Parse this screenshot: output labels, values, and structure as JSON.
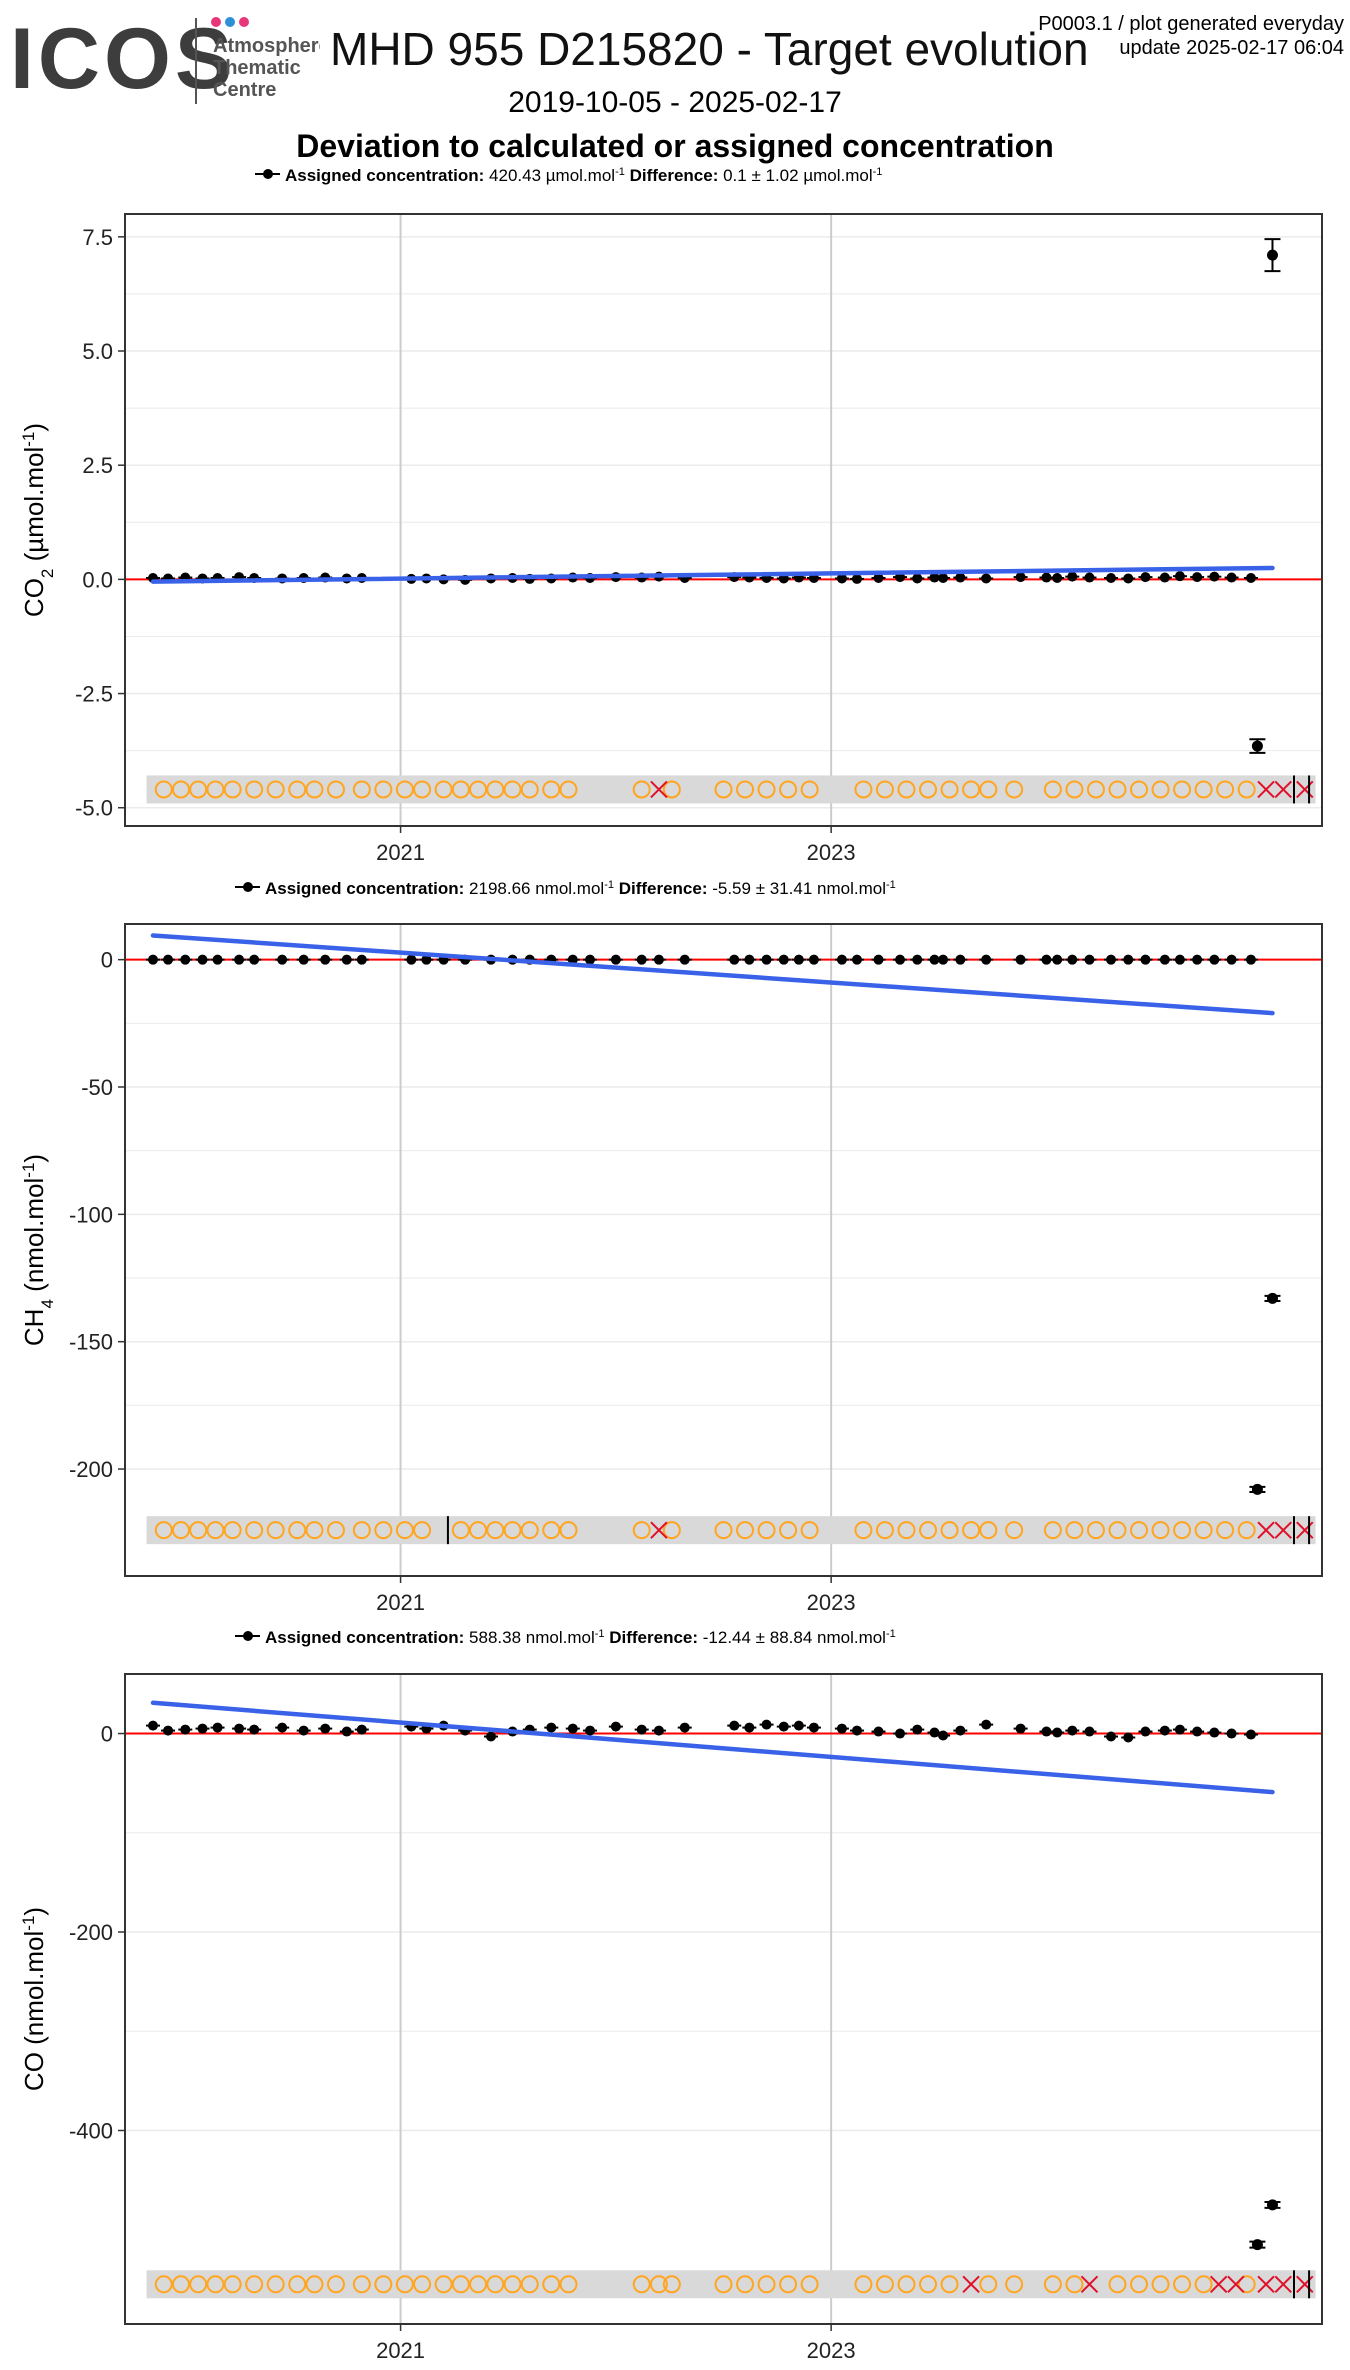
{
  "header": {
    "logo_text": "ICOS",
    "logo_sub": [
      "Atmosphere",
      "Thematic",
      "Centre"
    ],
    "title": "MHD 955 D215820 - Target evolution",
    "meta_line1": "P0003.1 / plot generated everyday",
    "meta_line2": "update  2025-02-17 06:04",
    "date_range": "2019-10-05 - 2025-02-17",
    "subtitle": "Deviation to calculated or assigned concentration"
  },
  "colors": {
    "points": "#000000",
    "zero_line": "#ff0000",
    "trend": "#3a62e8",
    "valid_marker": "#ffa520",
    "flag_marker": "#e0102a",
    "marker_band": "#d9d9d9",
    "grid": "#ebebeb",
    "year_line": "#cccccc"
  },
  "x_axis": {
    "ticks": [
      "2021",
      "2023"
    ]
  },
  "chart_data": [
    {
      "type": "scatter",
      "species": "co2",
      "ylabel_main": "CO",
      "ylabel_sub": "2",
      "ylabel_unit": " (µmol.mol",
      "ylabel_sup": "-1",
      "ylabel_close": ")",
      "legend_prefix": "Assigned concentration:",
      "legend_value": "420.43 µmol.mol",
      "legend_sup1": "-1",
      "legend_diff_label": "Difference:",
      "legend_diff_value": "0.1 ± 1.02 µmol.mol",
      "legend_sup2": "-1",
      "ylim": [
        -5.4,
        8.0
      ],
      "yticks": [
        7.5,
        5.0,
        2.5,
        0.0,
        -2.5,
        -5.0
      ],
      "ytick_labels": [
        "7.5",
        "5.0",
        "2.5",
        "0.0",
        "-2.5",
        "-5.0"
      ],
      "marker_y": -4.6,
      "x": [
        2019.85,
        2019.92,
        2020.0,
        2020.08,
        2020.15,
        2020.25,
        2020.32,
        2020.45,
        2020.55,
        2020.65,
        2020.75,
        2020.82,
        2021.05,
        2021.12,
        2021.2,
        2021.3,
        2021.42,
        2021.52,
        2021.6,
        2021.7,
        2021.8,
        2021.88,
        2022.0,
        2022.12,
        2022.2,
        2022.32,
        2022.55,
        2022.62,
        2022.7,
        2022.78,
        2022.85,
        2022.92,
        2023.05,
        2023.12,
        2023.22,
        2023.32,
        2023.4,
        2023.48,
        2023.52,
        2023.6,
        2023.72,
        2023.88,
        2024.0,
        2024.05,
        2024.12,
        2024.2,
        2024.3,
        2024.38,
        2024.46,
        2024.55,
        2024.62,
        2024.7,
        2024.78,
        2024.86,
        2024.95
      ],
      "y": [
        0.03,
        0.02,
        0.04,
        0.02,
        0.03,
        0.05,
        0.03,
        0.02,
        0.03,
        0.04,
        0.02,
        0.03,
        0.01,
        0.02,
        0.0,
        -0.01,
        0.02,
        0.03,
        0.01,
        0.02,
        0.04,
        0.03,
        0.05,
        0.04,
        0.06,
        0.03,
        0.05,
        0.04,
        0.03,
        0.02,
        0.04,
        0.03,
        0.02,
        0.01,
        0.03,
        0.05,
        0.02,
        0.04,
        0.03,
        0.04,
        0.02,
        0.05,
        0.04,
        0.03,
        0.06,
        0.04,
        0.03,
        0.02,
        0.05,
        0.04,
        0.07,
        0.05,
        0.06,
        0.04,
        0.03
      ],
      "outliers": [
        {
          "x": 2025.05,
          "y": 7.1,
          "err": 0.35
        },
        {
          "x": 2024.98,
          "y": -3.65,
          "err": 0.15
        }
      ],
      "trend": {
        "x": [
          2019.85,
          2025.05
        ],
        "y": [
          -0.05,
          0.25
        ]
      },
      "markers_valid": [
        2019.9,
        2019.98,
        2020.06,
        2020.14,
        2020.22,
        2020.32,
        2020.42,
        2020.52,
        2020.6,
        2020.7,
        2020.82,
        2020.92,
        2021.02,
        2021.1,
        2021.2,
        2021.28,
        2021.36,
        2021.44,
        2021.52,
        2021.6,
        2021.7,
        2021.78,
        2022.12,
        2022.26,
        2022.5,
        2022.6,
        2022.7,
        2022.8,
        2022.9,
        2023.15,
        2023.25,
        2023.35,
        2023.45,
        2023.55,
        2023.65,
        2023.73,
        2023.85,
        2024.03,
        2024.13,
        2024.23,
        2024.33,
        2024.43,
        2024.53,
        2024.63,
        2024.73,
        2024.83,
        2024.93
      ],
      "markers_flag": [
        2022.2,
        2025.02,
        2025.1,
        2025.2
      ],
      "markers_bar": [
        2025.15,
        2025.22
      ]
    },
    {
      "type": "scatter",
      "species": "ch4",
      "ylabel_main": "CH",
      "ylabel_sub": "4",
      "ylabel_unit": " (nmol.mol",
      "ylabel_sup": "-1",
      "ylabel_close": ")",
      "legend_prefix": "Assigned concentration:",
      "legend_value": "2198.66 nmol.mol",
      "legend_sup1": "-1",
      "legend_diff_label": "Difference:",
      "legend_diff_value": "-5.59 ± 31.41 nmol.mol",
      "legend_sup2": "-1",
      "ylim": [
        -242,
        14
      ],
      "yticks": [
        0,
        -50,
        -100,
        -150,
        -200
      ],
      "ytick_labels": [
        "0",
        "-50",
        "-100",
        "-150",
        "-200"
      ],
      "marker_y": -224,
      "x": [
        2019.85,
        2019.92,
        2020.0,
        2020.08,
        2020.15,
        2020.25,
        2020.32,
        2020.45,
        2020.55,
        2020.65,
        2020.75,
        2020.82,
        2021.05,
        2021.12,
        2021.2,
        2021.3,
        2021.42,
        2021.52,
        2021.6,
        2021.7,
        2021.8,
        2021.88,
        2022.0,
        2022.12,
        2022.2,
        2022.32,
        2022.55,
        2022.62,
        2022.7,
        2022.78,
        2022.85,
        2022.92,
        2023.05,
        2023.12,
        2023.22,
        2023.32,
        2023.4,
        2023.48,
        2023.52,
        2023.6,
        2023.72,
        2023.88,
        2024.0,
        2024.05,
        2024.12,
        2024.2,
        2024.3,
        2024.38,
        2024.46,
        2024.55,
        2024.62,
        2024.7,
        2024.78,
        2024.86,
        2024.95
      ],
      "y": [
        0,
        0,
        0,
        0,
        0,
        0,
        0,
        0,
        0,
        0,
        0,
        0,
        0,
        0,
        0,
        0,
        0,
        0,
        0,
        0,
        0,
        0,
        0,
        0,
        0,
        0,
        0,
        0,
        0,
        0,
        0,
        0,
        0,
        0,
        0,
        0,
        0,
        0,
        0,
        0,
        0,
        0,
        0,
        0,
        0,
        0,
        0,
        0,
        0,
        0,
        0,
        0,
        0,
        0,
        0
      ],
      "outliers": [
        {
          "x": 2025.05,
          "y": -133,
          "err": 1.0
        },
        {
          "x": 2024.98,
          "y": -208,
          "err": 1.0
        }
      ],
      "trend": {
        "x": [
          2019.85,
          2025.05
        ],
        "y": [
          9.5,
          -21
        ]
      },
      "markers_valid": [
        2019.9,
        2019.98,
        2020.06,
        2020.14,
        2020.22,
        2020.32,
        2020.42,
        2020.52,
        2020.6,
        2020.7,
        2020.82,
        2020.92,
        2021.02,
        2021.1,
        2021.28,
        2021.36,
        2021.44,
        2021.52,
        2021.6,
        2021.7,
        2021.78,
        2022.12,
        2022.26,
        2022.5,
        2022.6,
        2022.7,
        2022.8,
        2022.9,
        2023.15,
        2023.25,
        2023.35,
        2023.45,
        2023.55,
        2023.65,
        2023.73,
        2023.85,
        2024.03,
        2024.13,
        2024.23,
        2024.33,
        2024.43,
        2024.53,
        2024.63,
        2024.73,
        2024.83,
        2024.93
      ],
      "markers_flag": [
        2022.2,
        2025.02,
        2025.1,
        2025.2
      ],
      "markers_bar": [
        2021.22,
        2025.15,
        2025.22
      ]
    },
    {
      "type": "scatter",
      "species": "co",
      "ylabel_main": "CO",
      "ylabel_sub": "",
      "ylabel_unit": " (nmol.mol",
      "ylabel_sup": "-1",
      "ylabel_close": ")",
      "legend_prefix": "Assigned concentration:",
      "legend_value": "588.38 nmol.mol",
      "legend_sup1": "-1",
      "legend_diff_label": "Difference:",
      "legend_diff_value": "-12.44 ± 88.84 nmol.mol",
      "legend_sup2": "-1",
      "ylim": [
        -595,
        60
      ],
      "yticks": [
        0,
        -200,
        -400
      ],
      "ytick_labels": [
        "0",
        "-200",
        "-400"
      ],
      "marker_y": -555,
      "x": [
        2019.85,
        2019.92,
        2020.0,
        2020.08,
        2020.15,
        2020.25,
        2020.32,
        2020.45,
        2020.55,
        2020.65,
        2020.75,
        2020.82,
        2021.05,
        2021.12,
        2021.2,
        2021.3,
        2021.42,
        2021.52,
        2021.6,
        2021.7,
        2021.8,
        2021.88,
        2022.0,
        2022.12,
        2022.2,
        2022.32,
        2022.55,
        2022.62,
        2022.7,
        2022.78,
        2022.85,
        2022.92,
        2023.05,
        2023.12,
        2023.22,
        2023.32,
        2023.4,
        2023.48,
        2023.52,
        2023.6,
        2023.72,
        2023.88,
        2024.0,
        2024.05,
        2024.12,
        2024.2,
        2024.3,
        2024.38,
        2024.46,
        2024.55,
        2024.62,
        2024.7,
        2024.78,
        2024.86,
        2024.95
      ],
      "y": [
        8,
        3,
        4,
        5,
        6,
        5,
        4,
        6,
        3,
        5,
        2,
        4,
        7,
        5,
        8,
        3,
        -3,
        2,
        4,
        6,
        5,
        3,
        7,
        4,
        3,
        6,
        8,
        6,
        9,
        7,
        8,
        6,
        5,
        3,
        2,
        0,
        4,
        1,
        -2,
        3,
        9,
        5,
        2,
        1,
        3,
        2,
        -3,
        -4,
        2,
        3,
        4,
        2,
        1,
        0,
        -1
      ],
      "outliers": [
        {
          "x": 2025.05,
          "y": -475,
          "err": 3
        },
        {
          "x": 2024.98,
          "y": -515,
          "err": 3
        }
      ],
      "trend": {
        "x": [
          2019.85,
          2025.05
        ],
        "y": [
          31,
          -59
        ]
      },
      "markers_valid": [
        2019.9,
        2019.98,
        2020.06,
        2020.14,
        2020.22,
        2020.32,
        2020.42,
        2020.52,
        2020.6,
        2020.7,
        2020.82,
        2020.92,
        2021.02,
        2021.1,
        2021.2,
        2021.28,
        2021.36,
        2021.44,
        2021.52,
        2021.6,
        2021.7,
        2021.78,
        2022.12,
        2022.2,
        2022.26,
        2022.5,
        2022.6,
        2022.7,
        2022.8,
        2022.9,
        2023.15,
        2023.25,
        2023.35,
        2023.45,
        2023.55,
        2023.73,
        2023.85,
        2024.03,
        2024.13,
        2024.33,
        2024.43,
        2024.53,
        2024.63,
        2024.73,
        2024.93
      ],
      "markers_flag": [
        2023.65,
        2024.2,
        2024.8,
        2024.88,
        2025.02,
        2025.1,
        2025.2
      ],
      "markers_bar": [
        2025.15,
        2025.22
      ]
    }
  ]
}
